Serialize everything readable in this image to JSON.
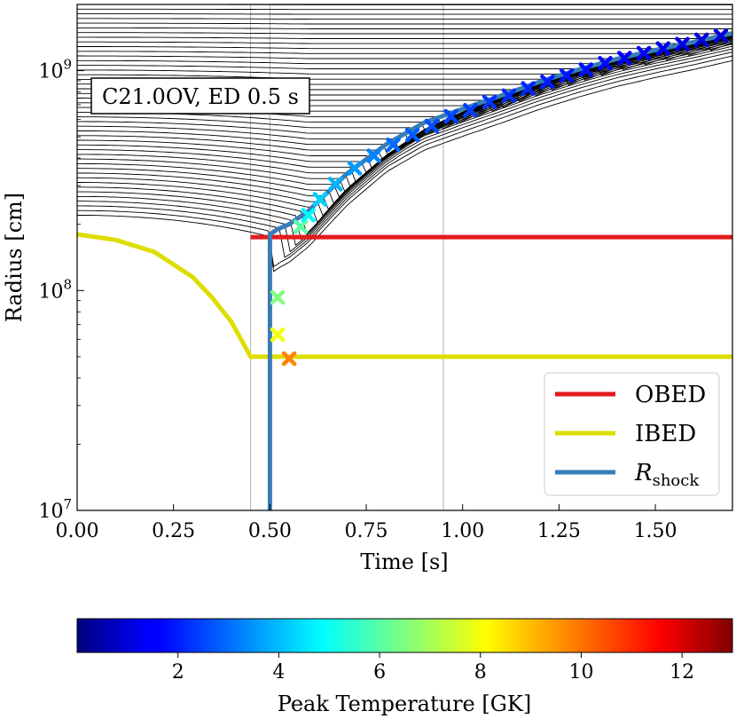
{
  "chart_data": {
    "type": "line",
    "xlabel": "Time [s]",
    "ylabel": "Radius [cm]",
    "xlim": [
      0,
      1.7
    ],
    "ylim": [
      10000000.0,
      2000000000.0
    ],
    "yscale": "log",
    "xticks": [
      {
        "v": 0,
        "label": "0.00"
      },
      {
        "v": 0.25,
        "label": "0.25"
      },
      {
        "v": 0.5,
        "label": "0.50"
      },
      {
        "v": 0.75,
        "label": "0.75"
      },
      {
        "v": 1.0,
        "label": "1.00"
      },
      {
        "v": 1.25,
        "label": "1.25"
      },
      {
        "v": 1.5,
        "label": "1.50"
      }
    ],
    "yticks": [
      {
        "v": 10000000.0,
        "base": "10",
        "exp": "7"
      },
      {
        "v": 100000000.0,
        "base": "10",
        "exp": "8"
      },
      {
        "v": 1000000000.0,
        "base": "10",
        "exp": "9"
      }
    ],
    "annotation": "C21.0OV, ED 0.5 s",
    "vlines": [
      0.45,
      0.5,
      0.95
    ],
    "series": [
      {
        "name": "OBED",
        "color": "#e31a1c",
        "x": [
          0.45,
          1.7
        ],
        "y": [
          175000000.0,
          175000000.0
        ]
      },
      {
        "name": "IBED",
        "color": "#dddd00",
        "x": [
          0.0,
          0.1,
          0.2,
          0.3,
          0.35,
          0.4,
          0.43,
          0.45,
          0.5,
          1.7
        ],
        "y": [
          180000000.0,
          170000000.0,
          150000000.0,
          115000000.0,
          93000000.0,
          72000000.0,
          58000000.0,
          50000000.0,
          50000000.0,
          50000000.0
        ]
      },
      {
        "name": "R",
        "sub": "shock",
        "color": "#377eb8",
        "x": [
          0.5,
          0.5,
          0.52,
          0.55,
          0.6,
          0.65,
          0.7,
          0.8,
          0.9,
          1.0,
          1.1,
          1.2,
          1.3,
          1.4,
          1.5,
          1.6,
          1.7
        ],
        "y": [
          10000000.0,
          180000000.0,
          190000000.0,
          200000000.0,
          230000000.0,
          280000000.0,
          340000000.0,
          460000000.0,
          580000000.0,
          670000000.0,
          770000000.0,
          890000000.0,
          1010000000.0,
          1130000000.0,
          1240000000.0,
          1350000000.0,
          1480000000.0
        ]
      }
    ],
    "markers": [
      {
        "t": 0.55,
        "r": 49000000.0,
        "T": 9.7
      },
      {
        "t": 0.52,
        "r": 63000000.0,
        "T": 8.0
      },
      {
        "t": 0.52,
        "r": 93000000.0,
        "T": 6.5
      },
      {
        "t": 0.58,
        "r": 195000000.0,
        "T": 6.0
      },
      {
        "t": 0.6,
        "r": 220000000.0,
        "T": 4.8
      },
      {
        "t": 0.63,
        "r": 260000000.0,
        "T": 4.3
      },
      {
        "t": 0.67,
        "r": 305000000.0,
        "T": 3.9
      },
      {
        "t": 0.72,
        "r": 360000000.0,
        "T": 3.6
      },
      {
        "t": 0.77,
        "r": 410000000.0,
        "T": 3.3
      },
      {
        "t": 0.82,
        "r": 460000000.0,
        "T": 3.0
      },
      {
        "t": 0.87,
        "r": 510000000.0,
        "T": 2.8
      },
      {
        "t": 0.92,
        "r": 560000000.0,
        "T": 2.6
      },
      {
        "t": 0.97,
        "r": 620000000.0,
        "T": 2.5
      },
      {
        "t": 1.02,
        "r": 660000000.0,
        "T": 2.4
      },
      {
        "t": 1.07,
        "r": 720000000.0,
        "T": 2.3
      },
      {
        "t": 1.12,
        "r": 770000000.0,
        "T": 2.2
      },
      {
        "t": 1.17,
        "r": 830000000.0,
        "T": 2.1
      },
      {
        "t": 1.22,
        "r": 890000000.0,
        "T": 2.0
      },
      {
        "t": 1.27,
        "r": 950000000.0,
        "T": 1.9
      },
      {
        "t": 1.32,
        "r": 1010000000.0,
        "T": 1.8
      },
      {
        "t": 1.37,
        "r": 1080000000.0,
        "T": 1.7
      },
      {
        "t": 1.42,
        "r": 1140000000.0,
        "T": 1.6
      },
      {
        "t": 1.47,
        "r": 1200000000.0,
        "T": 1.5
      },
      {
        "t": 1.52,
        "r": 1260000000.0,
        "T": 1.4
      },
      {
        "t": 1.57,
        "r": 1320000000.0,
        "T": 1.3
      },
      {
        "t": 1.62,
        "r": 1380000000.0,
        "T": 1.2
      },
      {
        "t": 1.67,
        "r": 1440000000.0,
        "T": 1.1
      }
    ],
    "colorbar": {
      "label": "Peak Temperature [GK]",
      "range": [
        0,
        13
      ],
      "ticks": [
        {
          "v": 2,
          "label": "2"
        },
        {
          "v": 4,
          "label": "4"
        },
        {
          "v": 6,
          "label": "6"
        },
        {
          "v": 8,
          "label": "8"
        },
        {
          "v": 10,
          "label": "10"
        },
        {
          "v": 12,
          "label": "12"
        }
      ]
    }
  }
}
